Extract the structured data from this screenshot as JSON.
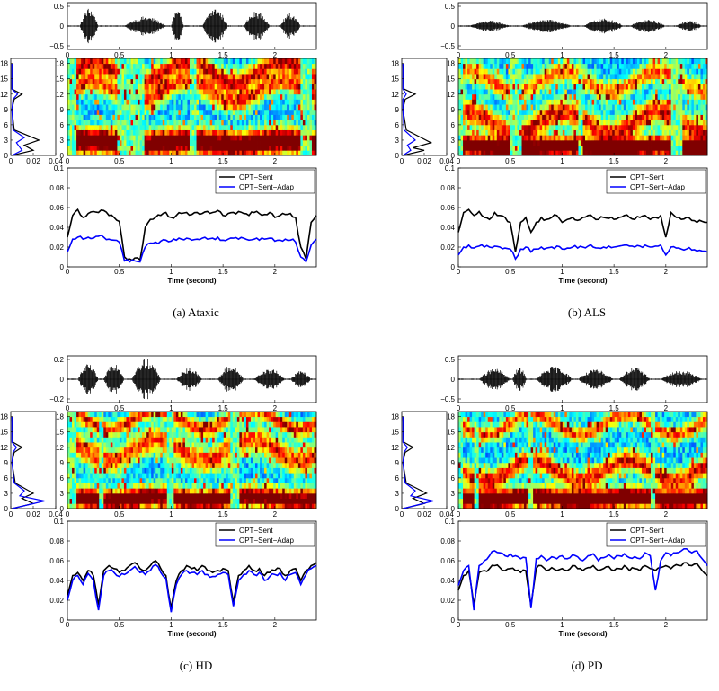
{
  "panels": [
    {
      "caption": "(a) Ataxic",
      "legend": [
        "OPT−Sent",
        "OPT−Sent−Adap"
      ],
      "xlabel": "Time (second)",
      "wave_yticks": [
        "0.5",
        "0",
        "−0.5"
      ],
      "wave_xticks": [
        "0",
        "0.5",
        "1",
        "1.5",
        "2"
      ],
      "spec_yticks": [
        "18",
        "15",
        "12",
        "9",
        "6",
        "3",
        "0"
      ],
      "spec_xticks": [
        "0",
        "0.5",
        "1",
        "1.5",
        "2"
      ],
      "side_xticks": [
        "0",
        "0.02",
        "0.04"
      ],
      "side_yticks": [
        "18",
        "15",
        "12",
        "9",
        "6",
        "3",
        "0"
      ],
      "bottom_yticks": [
        "0.1",
        "0.08",
        "0.06",
        "0.04",
        "0.02",
        "0"
      ],
      "bottom_xticks": [
        "0",
        "0.5",
        "1",
        "1.5",
        "2"
      ]
    },
    {
      "caption": "(b) ALS",
      "legend": [
        "OPT−Sent",
        "OPT−Sent−Adap"
      ],
      "xlabel": "Time (second)",
      "wave_yticks": [
        "0.5",
        "0",
        "−0.5"
      ],
      "wave_xticks": [
        "0",
        "0.5",
        "1",
        "1.5",
        "2"
      ],
      "spec_yticks": [
        "18",
        "15",
        "12",
        "9",
        "6",
        "3",
        "0"
      ],
      "spec_xticks": [
        "0",
        "0.5",
        "1",
        "1.5",
        "2"
      ],
      "side_xticks": [
        "0",
        "0.02",
        "0.04"
      ],
      "side_yticks": [
        "18",
        "15",
        "12",
        "9",
        "6",
        "3",
        "0"
      ],
      "bottom_yticks": [
        "0.1",
        "0.08",
        "0.06",
        "0.04",
        "0.02",
        "0"
      ],
      "bottom_xticks": [
        "0",
        "0.5",
        "1",
        "1.5",
        "2"
      ]
    },
    {
      "caption": "(c) HD",
      "legend": [
        "OPT−Sent",
        "OPT−Sent−Adap"
      ],
      "xlabel": "Time (second)",
      "wave_yticks": [
        "0.2",
        "0",
        "−0.2"
      ],
      "wave_xticks": [
        "0",
        "0.5",
        "1",
        "1.5",
        "2"
      ],
      "spec_yticks": [
        "18",
        "15",
        "12",
        "9",
        "6",
        "3",
        "0"
      ],
      "spec_xticks": [
        "0",
        "0.5",
        "1",
        "1.5",
        "2"
      ],
      "side_xticks": [
        "0",
        "0.02",
        "0.04"
      ],
      "side_yticks": [
        "18",
        "15",
        "12",
        "9",
        "6",
        "3",
        "0"
      ],
      "bottom_yticks": [
        "0.1",
        "0.08",
        "0.06",
        "0.04",
        "0.02",
        "0"
      ],
      "bottom_xticks": [
        "0",
        "0.5",
        "1",
        "1.5",
        "2"
      ]
    },
    {
      "caption": "(d) PD",
      "legend": [
        "OPT−Sent",
        "OPT−Sent−Adap"
      ],
      "xlabel": "Time (second)",
      "wave_yticks": [
        "0.5",
        "0",
        "−0.5"
      ],
      "wave_xticks": [
        "0",
        "0.5",
        "1",
        "1.5",
        "2"
      ],
      "spec_yticks": [
        "18",
        "15",
        "12",
        "9",
        "6",
        "3",
        "0"
      ],
      "spec_xticks": [
        "0",
        "0.5",
        "1",
        "1.5",
        "2"
      ],
      "side_xticks": [
        "0",
        "0.02",
        "0.04"
      ],
      "side_yticks": [
        "18",
        "15",
        "12",
        "9",
        "6",
        "3",
        "0"
      ],
      "bottom_yticks": [
        "0.1",
        "0.08",
        "0.06",
        "0.04",
        "0.02",
        "0"
      ],
      "bottom_xticks": [
        "0",
        "0.5",
        "1",
        "1.5",
        "2"
      ]
    }
  ],
  "chart_data": [
    {
      "type": "line",
      "panel": "(a) Ataxic",
      "x_range": [
        0,
        2.4
      ],
      "ylim": [
        0,
        0.1
      ],
      "series": [
        {
          "name": "OPT−Sent",
          "color": "#000000",
          "x": [
            0,
            0.05,
            0.1,
            0.15,
            0.2,
            0.25,
            0.3,
            0.35,
            0.4,
            0.45,
            0.5,
            0.55,
            0.6,
            0.65,
            0.7,
            0.75,
            0.8,
            0.85,
            0.9,
            0.95,
            1.0,
            1.05,
            1.1,
            1.15,
            1.2,
            1.25,
            1.3,
            1.35,
            1.4,
            1.45,
            1.5,
            1.55,
            1.6,
            1.65,
            1.7,
            1.75,
            1.8,
            1.85,
            1.9,
            1.95,
            2.0,
            2.05,
            2.1,
            2.15,
            2.2,
            2.25,
            2.3,
            2.35,
            2.4
          ],
          "y": [
            0.03,
            0.052,
            0.058,
            0.05,
            0.054,
            0.056,
            0.055,
            0.057,
            0.052,
            0.05,
            0.046,
            0.01,
            0.008,
            0.009,
            0.007,
            0.04,
            0.048,
            0.05,
            0.052,
            0.055,
            0.05,
            0.052,
            0.054,
            0.055,
            0.053,
            0.055,
            0.054,
            0.056,
            0.055,
            0.057,
            0.052,
            0.054,
            0.055,
            0.056,
            0.054,
            0.052,
            0.055,
            0.054,
            0.053,
            0.055,
            0.05,
            0.052,
            0.053,
            0.054,
            0.05,
            0.02,
            0.008,
            0.045,
            0.052
          ]
        },
        {
          "name": "OPT−Sent−Adap",
          "color": "#0000ff",
          "x": [
            0,
            0.05,
            0.1,
            0.15,
            0.2,
            0.25,
            0.3,
            0.35,
            0.4,
            0.45,
            0.5,
            0.55,
            0.6,
            0.65,
            0.7,
            0.75,
            0.8,
            0.85,
            0.9,
            0.95,
            1.0,
            1.05,
            1.1,
            1.15,
            1.2,
            1.25,
            1.3,
            1.35,
            1.4,
            1.45,
            1.5,
            1.55,
            1.6,
            1.65,
            1.7,
            1.75,
            1.8,
            1.85,
            1.9,
            1.95,
            2.0,
            2.05,
            2.1,
            2.15,
            2.2,
            2.25,
            2.3,
            2.35,
            2.4
          ],
          "y": [
            0.015,
            0.028,
            0.03,
            0.028,
            0.03,
            0.029,
            0.031,
            0.03,
            0.028,
            0.027,
            0.025,
            0.006,
            0.005,
            0.006,
            0.005,
            0.02,
            0.024,
            0.025,
            0.026,
            0.027,
            0.026,
            0.027,
            0.028,
            0.029,
            0.027,
            0.028,
            0.029,
            0.028,
            0.029,
            0.03,
            0.027,
            0.028,
            0.029,
            0.028,
            0.029,
            0.027,
            0.028,
            0.027,
            0.028,
            0.029,
            0.026,
            0.027,
            0.028,
            0.027,
            0.025,
            0.01,
            0.005,
            0.022,
            0.028
          ]
        }
      ]
    },
    {
      "type": "line",
      "panel": "(b) ALS",
      "x_range": [
        0,
        2.4
      ],
      "ylim": [
        0,
        0.1
      ],
      "series": [
        {
          "name": "OPT−Sent",
          "color": "#000000",
          "x": [
            0,
            0.05,
            0.1,
            0.15,
            0.2,
            0.25,
            0.3,
            0.35,
            0.4,
            0.45,
            0.5,
            0.55,
            0.6,
            0.65,
            0.7,
            0.75,
            0.8,
            0.85,
            0.9,
            0.95,
            1.0,
            1.05,
            1.1,
            1.15,
            1.2,
            1.25,
            1.3,
            1.35,
            1.4,
            1.45,
            1.5,
            1.55,
            1.6,
            1.65,
            1.7,
            1.75,
            1.8,
            1.85,
            1.9,
            1.95,
            2.0,
            2.05,
            2.1,
            2.15,
            2.2,
            2.25,
            2.3,
            2.35,
            2.4
          ],
          "y": [
            0.035,
            0.055,
            0.058,
            0.052,
            0.056,
            0.05,
            0.048,
            0.055,
            0.052,
            0.05,
            0.045,
            0.015,
            0.045,
            0.05,
            0.035,
            0.045,
            0.05,
            0.048,
            0.05,
            0.052,
            0.045,
            0.048,
            0.05,
            0.047,
            0.05,
            0.052,
            0.05,
            0.048,
            0.05,
            0.049,
            0.048,
            0.05,
            0.052,
            0.05,
            0.048,
            0.05,
            0.052,
            0.048,
            0.05,
            0.052,
            0.03,
            0.055,
            0.05,
            0.048,
            0.05,
            0.047,
            0.045,
            0.046,
            0.045
          ]
        },
        {
          "name": "OPT−Sent−Adap",
          "color": "#0000ff",
          "x": [
            0,
            0.05,
            0.1,
            0.15,
            0.2,
            0.25,
            0.3,
            0.35,
            0.4,
            0.45,
            0.5,
            0.55,
            0.6,
            0.65,
            0.7,
            0.75,
            0.8,
            0.85,
            0.9,
            0.95,
            1.0,
            1.05,
            1.1,
            1.15,
            1.2,
            1.25,
            1.3,
            1.35,
            1.4,
            1.45,
            1.5,
            1.55,
            1.6,
            1.65,
            1.7,
            1.75,
            1.8,
            1.85,
            1.9,
            1.95,
            2.0,
            2.05,
            2.1,
            2.15,
            2.2,
            2.25,
            2.3,
            2.35,
            2.4
          ],
          "y": [
            0.012,
            0.02,
            0.022,
            0.019,
            0.021,
            0.02,
            0.02,
            0.021,
            0.02,
            0.019,
            0.018,
            0.008,
            0.018,
            0.02,
            0.015,
            0.018,
            0.02,
            0.019,
            0.02,
            0.021,
            0.018,
            0.019,
            0.02,
            0.019,
            0.02,
            0.021,
            0.02,
            0.019,
            0.02,
            0.021,
            0.02,
            0.021,
            0.022,
            0.021,
            0.02,
            0.021,
            0.022,
            0.02,
            0.021,
            0.022,
            0.012,
            0.02,
            0.019,
            0.018,
            0.018,
            0.017,
            0.016,
            0.016,
            0.015
          ]
        }
      ]
    },
    {
      "type": "line",
      "panel": "(c) HD",
      "x_range": [
        0,
        2.4
      ],
      "ylim": [
        0,
        0.1
      ],
      "series": [
        {
          "name": "OPT−Sent",
          "color": "#000000",
          "x": [
            0,
            0.05,
            0.1,
            0.15,
            0.2,
            0.25,
            0.3,
            0.35,
            0.4,
            0.45,
            0.5,
            0.55,
            0.6,
            0.65,
            0.7,
            0.75,
            0.8,
            0.85,
            0.9,
            0.95,
            1.0,
            1.05,
            1.1,
            1.15,
            1.2,
            1.25,
            1.3,
            1.35,
            1.4,
            1.45,
            1.5,
            1.55,
            1.6,
            1.65,
            1.7,
            1.75,
            1.8,
            1.85,
            1.9,
            1.95,
            2.0,
            2.05,
            2.1,
            2.15,
            2.2,
            2.25,
            2.3,
            2.35,
            2.4
          ],
          "y": [
            0.025,
            0.045,
            0.048,
            0.04,
            0.05,
            0.045,
            0.015,
            0.05,
            0.055,
            0.052,
            0.048,
            0.05,
            0.055,
            0.058,
            0.052,
            0.05,
            0.055,
            0.06,
            0.052,
            0.045,
            0.012,
            0.04,
            0.05,
            0.055,
            0.052,
            0.05,
            0.055,
            0.05,
            0.048,
            0.05,
            0.052,
            0.05,
            0.018,
            0.045,
            0.05,
            0.055,
            0.05,
            0.052,
            0.045,
            0.048,
            0.05,
            0.052,
            0.045,
            0.05,
            0.052,
            0.04,
            0.05,
            0.055,
            0.058
          ]
        },
        {
          "name": "OPT−Sent−Adap",
          "color": "#0000ff",
          "x": [
            0,
            0.05,
            0.1,
            0.15,
            0.2,
            0.25,
            0.3,
            0.35,
            0.4,
            0.45,
            0.5,
            0.55,
            0.6,
            0.65,
            0.7,
            0.75,
            0.8,
            0.85,
            0.9,
            0.95,
            1.0,
            1.05,
            1.1,
            1.15,
            1.2,
            1.25,
            1.3,
            1.35,
            1.4,
            1.45,
            1.5,
            1.55,
            1.6,
            1.65,
            1.7,
            1.75,
            1.8,
            1.85,
            1.9,
            1.95,
            2.0,
            2.05,
            2.1,
            2.15,
            2.2,
            2.25,
            2.3,
            2.35,
            2.4
          ],
          "y": [
            0.02,
            0.04,
            0.045,
            0.036,
            0.047,
            0.04,
            0.01,
            0.045,
            0.05,
            0.048,
            0.044,
            0.046,
            0.05,
            0.054,
            0.048,
            0.046,
            0.05,
            0.056,
            0.048,
            0.042,
            0.008,
            0.036,
            0.046,
            0.05,
            0.048,
            0.046,
            0.05,
            0.046,
            0.044,
            0.046,
            0.048,
            0.046,
            0.014,
            0.04,
            0.046,
            0.05,
            0.046,
            0.048,
            0.04,
            0.044,
            0.046,
            0.048,
            0.04,
            0.046,
            0.048,
            0.036,
            0.046,
            0.052,
            0.055
          ]
        }
      ]
    },
    {
      "type": "line",
      "panel": "(d) PD",
      "x_range": [
        0,
        2.4
      ],
      "ylim": [
        0,
        0.1
      ],
      "series": [
        {
          "name": "OPT−Sent",
          "color": "#000000",
          "x": [
            0,
            0.05,
            0.1,
            0.15,
            0.2,
            0.25,
            0.3,
            0.35,
            0.4,
            0.45,
            0.5,
            0.55,
            0.6,
            0.65,
            0.7,
            0.75,
            0.8,
            0.85,
            0.9,
            0.95,
            1.0,
            1.05,
            1.1,
            1.15,
            1.2,
            1.25,
            1.3,
            1.35,
            1.4,
            1.45,
            1.5,
            1.55,
            1.6,
            1.65,
            1.7,
            1.75,
            1.8,
            1.85,
            1.9,
            1.95,
            2.0,
            2.05,
            2.1,
            2.15,
            2.2,
            2.25,
            2.3,
            2.35,
            2.4
          ],
          "y": [
            0.03,
            0.045,
            0.05,
            0.015,
            0.048,
            0.05,
            0.052,
            0.055,
            0.053,
            0.05,
            0.052,
            0.05,
            0.048,
            0.05,
            0.015,
            0.052,
            0.055,
            0.05,
            0.053,
            0.05,
            0.052,
            0.05,
            0.055,
            0.052,
            0.05,
            0.053,
            0.055,
            0.05,
            0.052,
            0.054,
            0.05,
            0.052,
            0.055,
            0.05,
            0.052,
            0.05,
            0.055,
            0.052,
            0.05,
            0.053,
            0.055,
            0.052,
            0.056,
            0.055,
            0.058,
            0.055,
            0.057,
            0.05,
            0.045
          ]
        },
        {
          "name": "OPT−Sent−Adap",
          "color": "#0000ff",
          "x": [
            0,
            0.05,
            0.1,
            0.15,
            0.2,
            0.25,
            0.3,
            0.35,
            0.4,
            0.45,
            0.5,
            0.55,
            0.6,
            0.65,
            0.7,
            0.75,
            0.8,
            0.85,
            0.9,
            0.95,
            1.0,
            1.05,
            1.1,
            1.15,
            1.2,
            1.25,
            1.3,
            1.35,
            1.4,
            1.45,
            1.5,
            1.55,
            1.6,
            1.65,
            1.7,
            1.75,
            1.8,
            1.85,
            1.9,
            1.95,
            2.0,
            2.05,
            2.1,
            2.15,
            2.2,
            2.25,
            2.3,
            2.35,
            2.4
          ],
          "y": [
            0.035,
            0.05,
            0.055,
            0.01,
            0.055,
            0.06,
            0.065,
            0.07,
            0.068,
            0.065,
            0.067,
            0.065,
            0.062,
            0.063,
            0.012,
            0.062,
            0.065,
            0.06,
            0.064,
            0.062,
            0.065,
            0.062,
            0.066,
            0.064,
            0.06,
            0.065,
            0.067,
            0.06,
            0.063,
            0.066,
            0.062,
            0.065,
            0.067,
            0.063,
            0.064,
            0.062,
            0.068,
            0.065,
            0.03,
            0.06,
            0.068,
            0.065,
            0.068,
            0.07,
            0.072,
            0.068,
            0.07,
            0.062,
            0.055
          ]
        }
      ]
    }
  ]
}
